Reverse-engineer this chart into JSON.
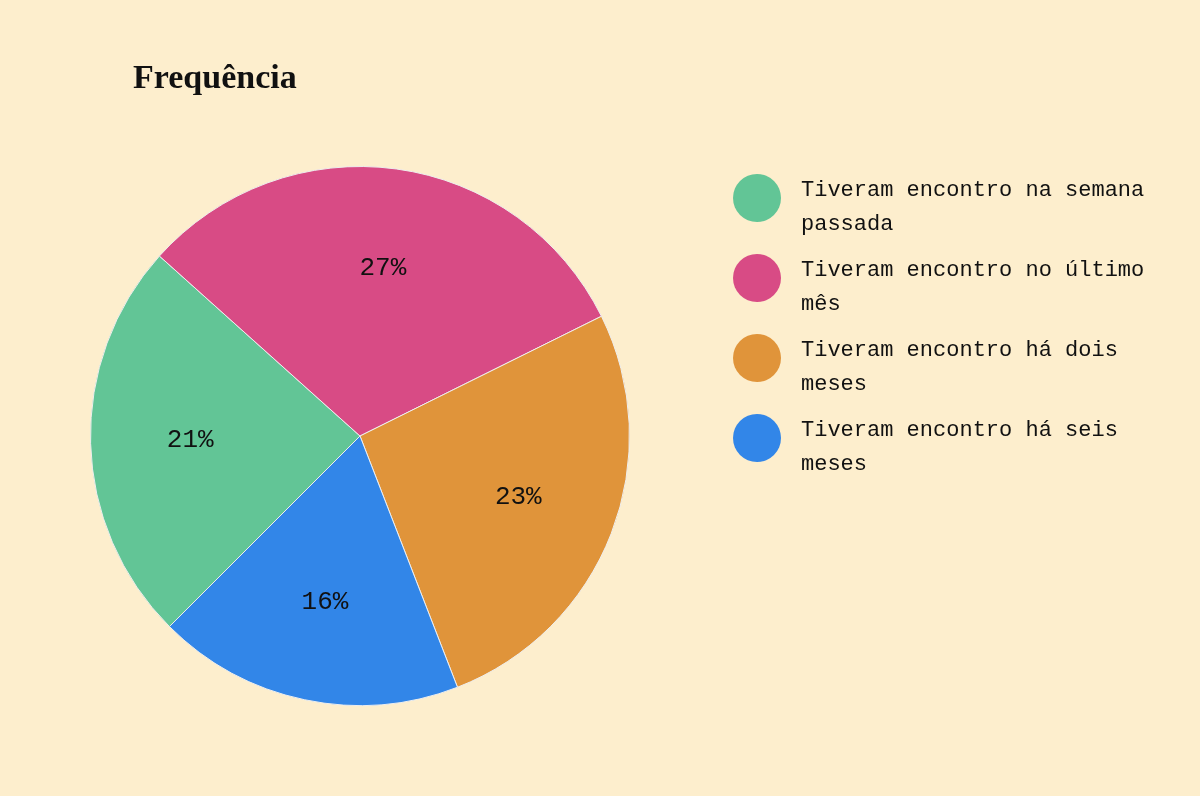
{
  "chart_data": {
    "type": "pie",
    "title": "Frequência",
    "categories": [
      "Tiveram encontro na semana passada",
      "Tiveram encontro no último mês",
      "Tiveram encontro há dois meses",
      "Tiveram encontro há seis meses"
    ],
    "values": [
      21,
      27,
      23,
      16
    ],
    "colors": [
      "#62c596",
      "#d84b85",
      "#e0943a",
      "#3286e8"
    ],
    "value_labels": [
      "21%",
      "27%",
      "23%",
      "16%"
    ],
    "legend": "right"
  }
}
